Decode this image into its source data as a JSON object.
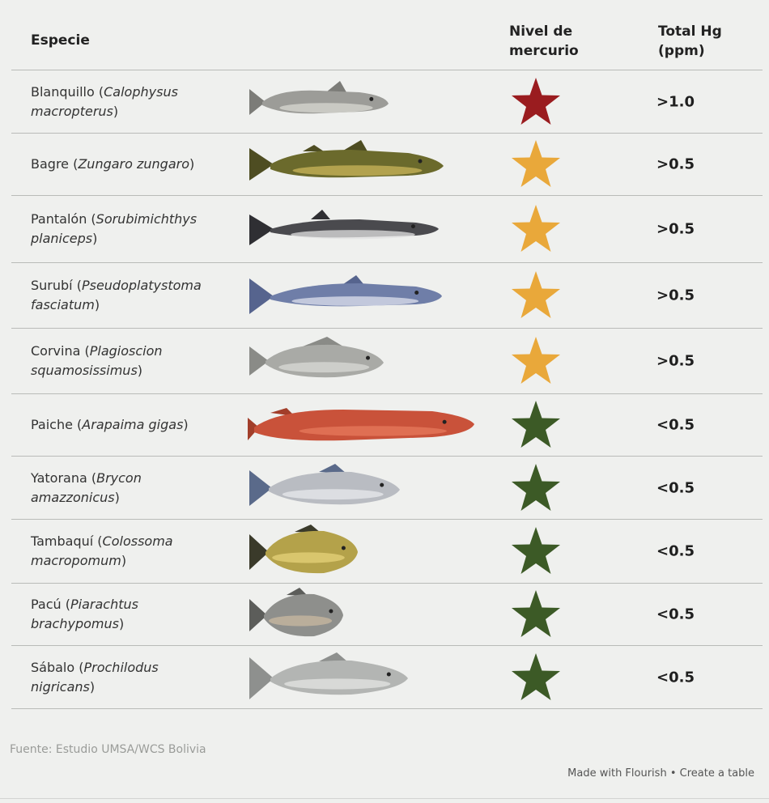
{
  "header": {
    "species": "Especie",
    "mercury_level": "Nivel de mercurio",
    "total_hg": "Total Hg (ppm)"
  },
  "colors": {
    "high": "#9a1c1f",
    "medium": "#e9a83a",
    "low": "#3c5a26"
  },
  "rows": [
    {
      "common": "Blanquillo (",
      "scientific": "Calophysus macropterus",
      "close": ")",
      "level": "high",
      "value": ">1.0",
      "fish_icon": "catfish-silver"
    },
    {
      "common": "Bagre (",
      "scientific": "Zungaro zungaro",
      "close": ")",
      "level": "medium",
      "value": ">0.5",
      "fish_icon": "catfish-olive"
    },
    {
      "common": "Pantalón (",
      "scientific": "Sorubimichthys planiceps",
      "close": ")",
      "level": "medium",
      "value": ">0.5",
      "fish_icon": "catfish-striped"
    },
    {
      "common": "Surubí (",
      "scientific": "Pseudoplatystoma fasciatum",
      "close": ")",
      "level": "medium",
      "value": ">0.5",
      "fish_icon": "catfish-tiger"
    },
    {
      "common": "Corvina (",
      "scientific": "Plagioscion squamosissimus",
      "close": ")",
      "level": "medium",
      "value": ">0.5",
      "fish_icon": "drum-fish"
    },
    {
      "common": "Paiche (",
      "scientific": "Arapaima gigas",
      "close": ")",
      "level": "low",
      "value": "<0.5",
      "fish_icon": "arapaima"
    },
    {
      "common": "Yatorana (",
      "scientific": "Brycon amazzonicus",
      "close": ")",
      "level": "low",
      "value": "<0.5",
      "fish_icon": "silver-fish"
    },
    {
      "common": "Tambaquí (",
      "scientific": "Colossoma macropomum",
      "close": ")",
      "level": "low",
      "value": "<0.5",
      "fish_icon": "tambaqui"
    },
    {
      "common": "Pacú (",
      "scientific": "Piarachtus brachypomus",
      "close": ")",
      "level": "low",
      "value": "<0.5",
      "fish_icon": "pacu"
    },
    {
      "common": "Sábalo (",
      "scientific": "Prochilodus nigricans",
      "close": ")",
      "level": "low",
      "value": "<0.5",
      "fish_icon": "sabalo"
    }
  ],
  "source": "Fuente: Estudio UMSA/WCS Bolivia",
  "credits": {
    "made_with": "Made with Flourish",
    "separator": "•",
    "create": "Create a table"
  }
}
